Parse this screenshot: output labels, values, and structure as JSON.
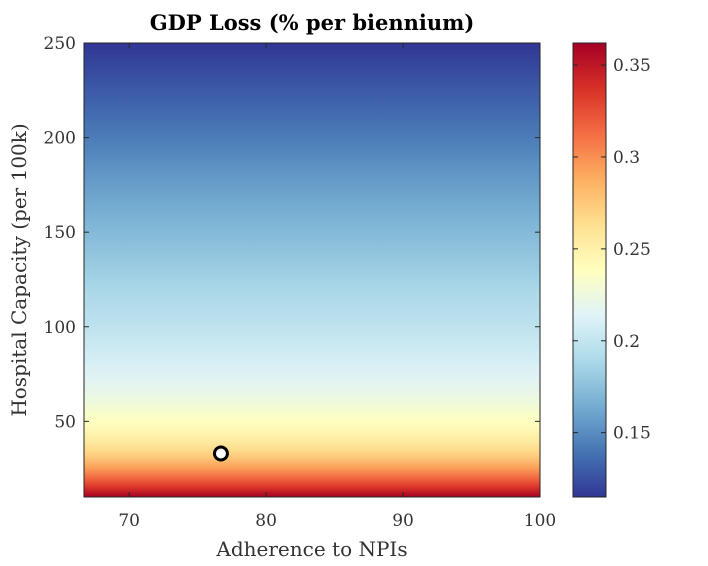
{
  "chart_data": {
    "type": "heatmap",
    "title": "GDP Loss (% per biennium)",
    "xlabel": "Adherence to NPIs",
    "ylabel": "Hospital Capacity (per 100k)",
    "xlim": [
      66.7,
      100
    ],
    "ylim": [
      10,
      250
    ],
    "x_ticks": [
      70,
      80,
      90,
      100
    ],
    "y_ticks": [
      50,
      100,
      150,
      200,
      250
    ],
    "x_tick_labels": [
      "70",
      "80",
      "90",
      "100"
    ],
    "y_tick_labels": [
      "50",
      "100",
      "150",
      "200",
      "250"
    ],
    "colorbar": {
      "range": [
        0.115,
        0.362
      ],
      "ticks": [
        0.15,
        0.2,
        0.25,
        0.3,
        0.35
      ],
      "tick_labels": [
        "0.15",
        "0.2",
        "0.25",
        "0.3",
        "0.35"
      ],
      "colormap": "RdYlBu_r"
    },
    "profile": {
      "description": "value varies with Hospital Capacity only",
      "hospital_capacity": [
        10,
        15,
        20,
        25,
        30,
        35,
        40,
        45,
        50,
        60,
        70,
        80,
        90,
        100,
        120,
        140,
        160,
        180,
        200,
        225,
        250
      ],
      "gdp_loss": [
        0.362,
        0.336,
        0.315,
        0.295,
        0.278,
        0.265,
        0.254,
        0.245,
        0.238,
        0.226,
        0.217,
        0.21,
        0.204,
        0.198,
        0.188,
        0.177,
        0.166,
        0.155,
        0.143,
        0.129,
        0.115
      ]
    },
    "marker": {
      "x": 76.7,
      "y": 33
    },
    "grid": false
  },
  "colors": {
    "colormap_stops": [
      "#313695",
      "#4575b4",
      "#74add1",
      "#abd9e9",
      "#e0f3f8",
      "#ffffbf",
      "#fee090",
      "#fdae61",
      "#f46d43",
      "#d73027",
      "#a50026"
    ],
    "axis": "#262626",
    "marker_fill": "#ffffff",
    "marker_edge": "#000000"
  }
}
